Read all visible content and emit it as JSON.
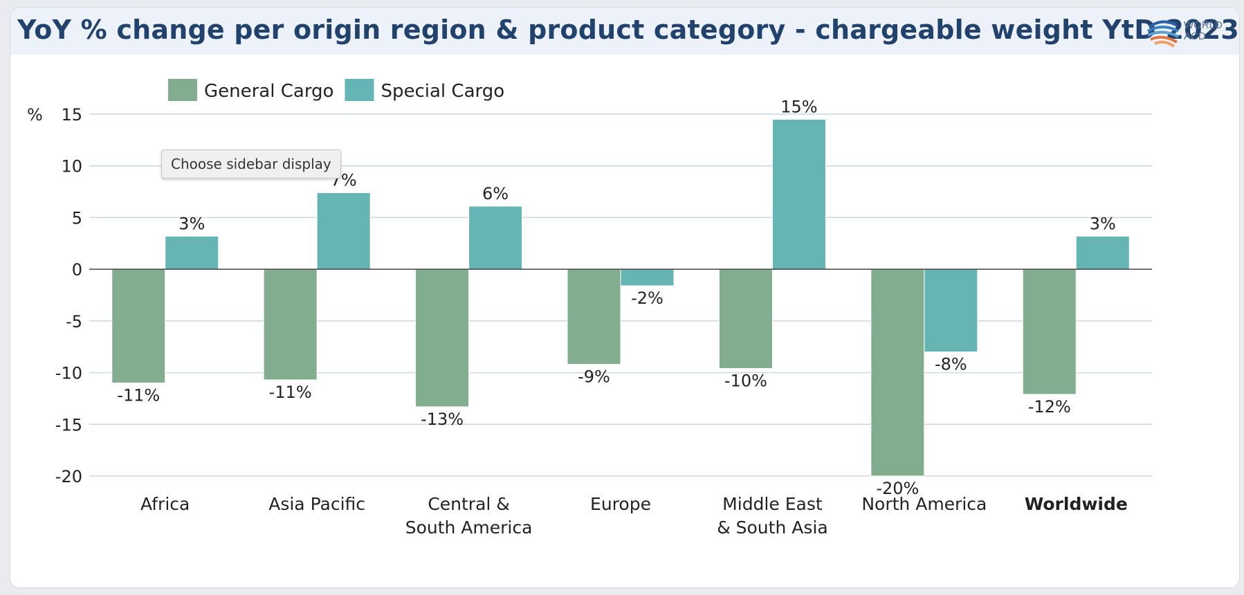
{
  "chart_data": {
    "type": "bar",
    "title": "YoY % change per origin region & product category - chargeable weight YtD 2023",
    "ylabel": "%",
    "xlabel": "",
    "ylim": [
      -20,
      15
    ],
    "yticks": [
      15,
      10,
      5,
      0,
      -5,
      -10,
      -15,
      -20
    ],
    "grid": true,
    "legend_position": "top-left",
    "categories": [
      [
        "Africa"
      ],
      [
        "Asia Pacific"
      ],
      [
        "Central &",
        "South America"
      ],
      [
        "Europe"
      ],
      [
        "Middle East",
        "& South Asia"
      ],
      [
        "North America"
      ],
      [
        "Worldwide"
      ]
    ],
    "bold_categories": [
      "Worldwide"
    ],
    "series": [
      {
        "name": "General Cargo",
        "color": "#82ae8f",
        "values": [
          -11,
          -10.7,
          -13.3,
          -9.2,
          -9.6,
          -20,
          -12.1
        ],
        "labels": [
          "-11%",
          "-11%",
          "-13%",
          "-9%",
          "-10%",
          "-20%",
          "-12%"
        ]
      },
      {
        "name": "Special Cargo",
        "color": "#65b5b5",
        "values": [
          3.2,
          7.4,
          6.1,
          -1.6,
          14.5,
          -8,
          3.2
        ],
        "labels": [
          "3%",
          "7%",
          "6%",
          "-2%",
          "15%",
          "-8%",
          "3%"
        ]
      }
    ]
  },
  "logo": {
    "line1": "WORLD",
    "line2": "ACD"
  },
  "tooltip": "Choose sidebar display"
}
